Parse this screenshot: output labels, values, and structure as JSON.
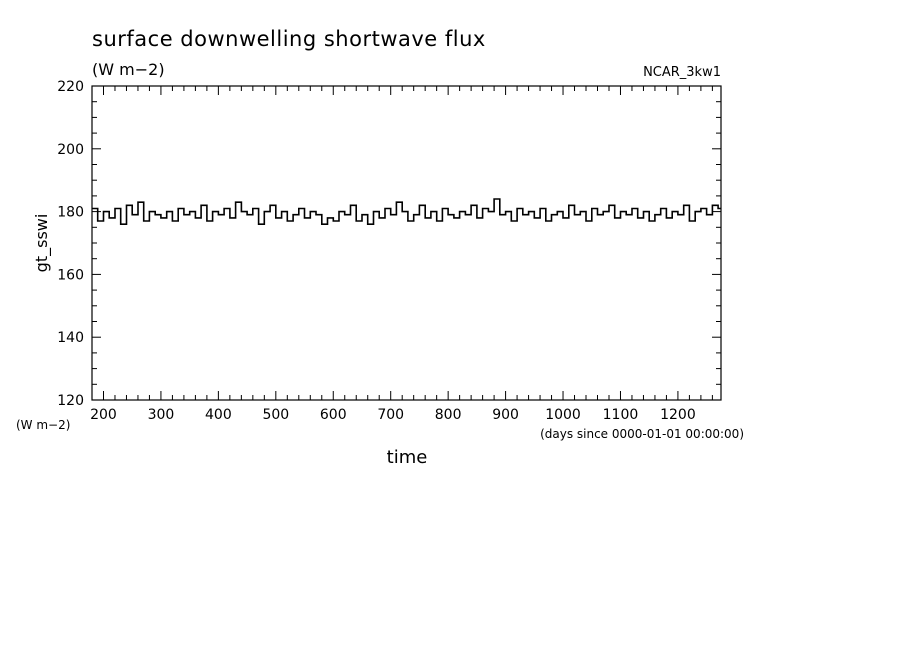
{
  "chart_data": {
    "type": "line",
    "title": "surface downwelling shortwave flux",
    "subtitle": "(W m−2)",
    "run_label": "NCAR_3kw1",
    "xlabel": "time",
    "x_unit": "(days since 0000-01-01 00:00:00)",
    "ylabel": "gt_sswi",
    "y_unit": "(W m−2)",
    "xlim": [
      180,
      1275
    ],
    "ylim": [
      120,
      220
    ],
    "x_ticks": [
      200,
      300,
      400,
      500,
      600,
      700,
      800,
      900,
      1000,
      1100,
      1200
    ],
    "x_tick_labels": [
      "200",
      "300",
      "400",
      "500",
      "600",
      "700",
      "800",
      "900",
      "1000",
      "1100",
      "1200"
    ],
    "y_ticks": [
      120,
      140,
      160,
      180,
      200,
      220
    ],
    "y_tick_labels": [
      "120",
      "140",
      "160",
      "180",
      "200",
      "220"
    ],
    "grid": false,
    "line_style": "step",
    "series": [
      {
        "color": "#000000",
        "x": [
          180,
          190,
          200,
          210,
          220,
          230,
          240,
          250,
          260,
          270,
          280,
          290,
          300,
          310,
          320,
          330,
          340,
          350,
          360,
          370,
          380,
          390,
          400,
          410,
          420,
          430,
          440,
          450,
          460,
          470,
          480,
          490,
          500,
          510,
          520,
          530,
          540,
          550,
          560,
          570,
          580,
          590,
          600,
          610,
          620,
          630,
          640,
          650,
          660,
          670,
          680,
          690,
          700,
          710,
          720,
          730,
          740,
          750,
          760,
          770,
          780,
          790,
          800,
          810,
          820,
          830,
          840,
          850,
          860,
          870,
          880,
          890,
          900,
          910,
          920,
          930,
          940,
          950,
          960,
          970,
          980,
          990,
          1000,
          1010,
          1020,
          1030,
          1040,
          1050,
          1060,
          1070,
          1080,
          1090,
          1100,
          1110,
          1120,
          1130,
          1140,
          1150,
          1160,
          1170,
          1180,
          1190,
          1200,
          1210,
          1220,
          1230,
          1240,
          1250,
          1260,
          1270
        ],
        "values": [
          181,
          177,
          180,
          178,
          181,
          176,
          182,
          179,
          183,
          177,
          180,
          179,
          178,
          180,
          177,
          181,
          179,
          180,
          178,
          182,
          177,
          180,
          179,
          181,
          178,
          183,
          180,
          179,
          181,
          176,
          180,
          182,
          178,
          180,
          177,
          179,
          181,
          178,
          180,
          179,
          176,
          178,
          177,
          180,
          179,
          182,
          177,
          179,
          176,
          180,
          178,
          181,
          179,
          183,
          180,
          177,
          179,
          182,
          178,
          180,
          177,
          181,
          179,
          178,
          180,
          179,
          182,
          178,
          181,
          180,
          184,
          179,
          180,
          177,
          181,
          179,
          180,
          178,
          181,
          177,
          179,
          180,
          178,
          182,
          179,
          180,
          177,
          181,
          179,
          180,
          182,
          178,
          180,
          179,
          181,
          178,
          180,
          177,
          179,
          181,
          178,
          180,
          179,
          182,
          177,
          180,
          181,
          179,
          182,
          181
        ]
      }
    ]
  }
}
